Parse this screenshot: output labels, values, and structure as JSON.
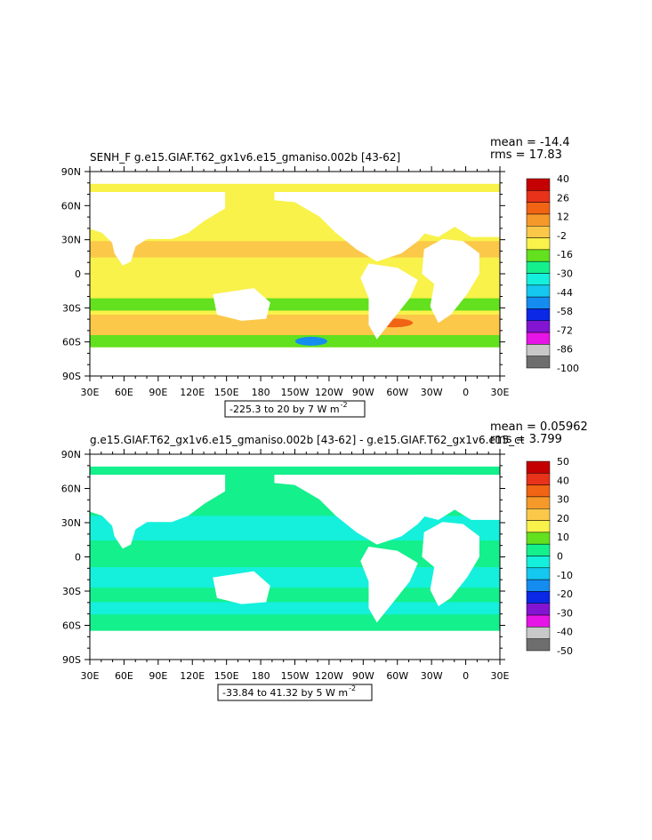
{
  "chart_data": [
    {
      "type": "heatmap",
      "title": "SENH_F  g.e15.GIAF.T62_gx1v6.e15_gmaniso.002b  [43-62]",
      "stats": [
        "mean = -14.4",
        "rms = 17.83"
      ],
      "x_ticks": [
        "30E",
        "60E",
        "90E",
        "120E",
        "150E",
        "180",
        "150W",
        "120W",
        "90W",
        "60W",
        "30W",
        "0",
        "30E"
      ],
      "y_ticks": [
        "90N",
        "60N",
        "30N",
        "0",
        "30S",
        "60S",
        "90S"
      ],
      "range_label": "-225.3 to 20 by 7  W m",
      "range_exp": "-2",
      "colorbar": {
        "levels": [
          "40",
          "26",
          "12",
          "-2",
          "-16",
          "-30",
          "-44",
          "-58",
          "-72",
          "-86",
          "-100"
        ],
        "colors": [
          "#c40000",
          "#e8321a",
          "#f06414",
          "#f59a2a",
          "#fbc84a",
          "#f8f24a",
          "#63e01e",
          "#14f08c",
          "#14f0dc",
          "#14c8f0",
          "#148cf0",
          "#0a28e6",
          "#8214d2",
          "#e614e6",
          "#c8c8c8",
          "#6e6e6e"
        ]
      }
    },
    {
      "type": "heatmap",
      "title": "g.e15.GIAF.T62_gx1v6.e15_gmaniso.002b  [43-62]  -  g.e15.GIAF.T62_gx1v6.e15_ct",
      "stats": [
        "mean = 0.05962",
        "rms = 3.799"
      ],
      "x_ticks": [
        "30E",
        "60E",
        "90E",
        "120E",
        "150E",
        "180",
        "150W",
        "120W",
        "90W",
        "60W",
        "30W",
        "0",
        "30E"
      ],
      "y_ticks": [
        "90N",
        "60N",
        "30N",
        "0",
        "30S",
        "60S",
        "90S"
      ],
      "range_label": "-33.84 to 41.32 by 5  W m",
      "range_exp": "-2",
      "colorbar": {
        "levels": [
          "50",
          "40",
          "30",
          "20",
          "10",
          "0",
          "-10",
          "-20",
          "-30",
          "-40",
          "-50"
        ],
        "colors": [
          "#c40000",
          "#e8321a",
          "#f06414",
          "#f59a2a",
          "#fbc84a",
          "#f8f24a",
          "#63e01e",
          "#14f08c",
          "#14f0dc",
          "#14c8f0",
          "#148cf0",
          "#0a28e6",
          "#8214d2",
          "#e614e6",
          "#c8c8c8",
          "#6e6e6e"
        ]
      }
    }
  ]
}
